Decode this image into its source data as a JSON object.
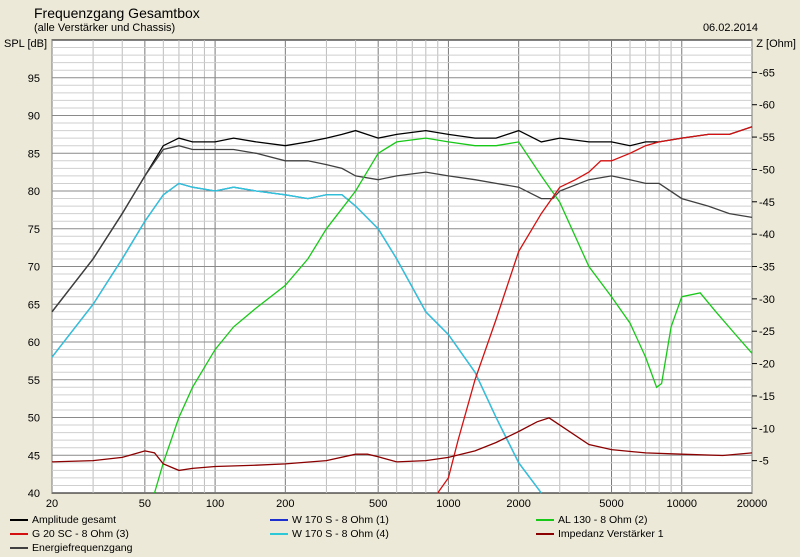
{
  "window": {
    "title": "Frequenzgang Gesamtbox",
    "subtitle": "(alle Verstärker und Chassis)",
    "date": "06.02.2014"
  },
  "colors": {
    "background": "#ece9d8",
    "plot_bg": "#ffffff",
    "grid": "#a0a0a0",
    "black": "#000000",
    "blue": "#1e2fd0",
    "green": "#18c818",
    "red": "#d41010",
    "cyan": "#2dc8d8",
    "darkred": "#8b0000",
    "darkgray": "#404040"
  },
  "chart_data": {
    "type": "line",
    "title": "Frequenzgang Gesamtbox",
    "subtitle": "(alle Verstärker und Chassis)",
    "ylabel": "SPL [dB]",
    "y2label": "Z [Ohm]",
    "xscale": "log",
    "xlim": [
      20,
      20000
    ],
    "ylim": [
      40,
      100
    ],
    "y2lim": [
      0,
      70
    ],
    "xticks": [
      20,
      50,
      100,
      200,
      500,
      1000,
      2000,
      5000,
      10000,
      20000
    ],
    "xtick_labels": [
      "20",
      "50",
      "100",
      "200",
      "500",
      "1000",
      "2000",
      "5000",
      "10000",
      "20000"
    ],
    "yticks": [
      40,
      45,
      50,
      55,
      60,
      65,
      70,
      75,
      80,
      85,
      90,
      95
    ],
    "y2ticks": [
      5,
      10,
      15,
      20,
      25,
      30,
      35,
      40,
      45,
      50,
      55,
      60,
      65
    ],
    "grid": true,
    "legend_position": "bottom",
    "series": [
      {
        "name": "Amplitude gesamt",
        "color": "black",
        "axis": "left",
        "x": [
          20,
          30,
          40,
          50,
          60,
          70,
          80,
          100,
          120,
          150,
          200,
          250,
          300,
          350,
          400,
          500,
          600,
          800,
          1000,
          1300,
          1600,
          2000,
          2500,
          3000,
          4000,
          5000,
          6000,
          7000,
          8000,
          10000,
          13000,
          16000,
          20000
        ],
        "y": [
          64,
          71,
          77,
          82,
          86,
          87,
          86.5,
          86.5,
          87,
          86.5,
          86,
          86.5,
          87,
          87.5,
          88,
          87,
          87.5,
          88,
          87.5,
          87,
          87,
          88,
          86.5,
          87,
          86.5,
          86.5,
          86,
          86.5,
          86.5,
          87,
          87.5,
          87.5,
          88.5
        ]
      },
      {
        "name": "Energiefrequenzgang",
        "color": "darkgray",
        "axis": "left",
        "x": [
          20,
          30,
          40,
          50,
          60,
          70,
          80,
          100,
          120,
          150,
          200,
          250,
          300,
          350,
          400,
          500,
          600,
          800,
          1000,
          1300,
          1600,
          2000,
          2500,
          2800,
          3000,
          4000,
          5000,
          6000,
          7000,
          8000,
          10000,
          13000,
          16000,
          20000
        ],
        "y": [
          64,
          71,
          77,
          82,
          85.5,
          86,
          85.5,
          85.5,
          85.5,
          85,
          84,
          84,
          83.5,
          83,
          82,
          81.5,
          82,
          82.5,
          82,
          81.5,
          81,
          80.5,
          79,
          79,
          80,
          81.5,
          82,
          81.5,
          81,
          81,
          79,
          78,
          77,
          76.5
        ]
      },
      {
        "name": "W 170 S - 8 Ohm (1)",
        "color": "blue",
        "axis": "left",
        "x": [
          20,
          30,
          40,
          50,
          60,
          70,
          80,
          100,
          120,
          150,
          200,
          250,
          300,
          350,
          400,
          500,
          600,
          800,
          1000,
          1300,
          1600,
          2000,
          2500
        ],
        "y": [
          58,
          65,
          71,
          76,
          79.5,
          81,
          80.5,
          80,
          80.5,
          80,
          79.5,
          79,
          79.5,
          79.5,
          78,
          75,
          71,
          64,
          61,
          56,
          50,
          44,
          40
        ]
      },
      {
        "name": "W 170 S - 8 Ohm (4)",
        "color": "cyan",
        "axis": "left",
        "x": [
          20,
          30,
          40,
          50,
          60,
          70,
          80,
          100,
          120,
          150,
          200,
          250,
          300,
          350,
          400,
          500,
          600,
          800,
          1000,
          1300,
          1600,
          2000,
          2500
        ],
        "y": [
          58,
          65,
          71,
          76,
          79.5,
          81,
          80.5,
          80,
          80.5,
          80,
          79.5,
          79,
          79.5,
          79.5,
          78,
          75,
          71,
          64,
          61,
          56,
          50,
          44,
          40
        ]
      },
      {
        "name": "AL 130 - 8 Ohm (2)",
        "color": "green",
        "axis": "left",
        "x": [
          55,
          60,
          70,
          80,
          100,
          120,
          150,
          200,
          250,
          300,
          400,
          500,
          600,
          800,
          1000,
          1300,
          1600,
          2000,
          2500,
          3000,
          4000,
          5000,
          6000,
          7000,
          7800,
          8200,
          9000,
          10000,
          12000,
          14000,
          17000,
          20000
        ],
        "y": [
          40,
          44,
          50,
          54,
          59,
          62,
          64.5,
          67.5,
          71,
          75,
          80,
          85,
          86.5,
          87,
          86.5,
          86,
          86,
          86.5,
          82,
          78.5,
          70,
          66,
          62.5,
          58,
          54,
          54.5,
          62,
          66,
          66.5,
          64,
          61,
          58.5
        ]
      },
      {
        "name": "G 20 SC - 8 Ohm (3)",
        "color": "red",
        "axis": "left",
        "x": [
          900,
          1000,
          1100,
          1300,
          1600,
          2000,
          2500,
          3000,
          3500,
          4000,
          4500,
          5000,
          6000,
          7000,
          8000,
          10000,
          13000,
          16000,
          20000
        ],
        "y": [
          40,
          42,
          47,
          55,
          63,
          72,
          77,
          80.5,
          81.5,
          82.5,
          84,
          84,
          85,
          86,
          86.5,
          87,
          87.5,
          87.5,
          88.5
        ]
      },
      {
        "name": "Impedanz Verstärker 1",
        "color": "darkred",
        "axis": "right",
        "x": [
          20,
          30,
          40,
          50,
          55,
          60,
          70,
          80,
          100,
          150,
          200,
          300,
          400,
          450,
          500,
          600,
          800,
          1000,
          1300,
          1600,
          2000,
          2400,
          2700,
          3000,
          4000,
          5000,
          7000,
          10000,
          15000,
          20000
        ],
        "y": [
          4.8,
          5,
          5.5,
          6.5,
          6.2,
          4.5,
          3.5,
          3.8,
          4.1,
          4.3,
          4.5,
          5,
          6,
          6,
          5.6,
          4.8,
          5,
          5.5,
          6.5,
          7.8,
          9.5,
          11,
          11.6,
          10.5,
          7.5,
          6.7,
          6.2,
          6,
          5.8,
          6.2
        ]
      }
    ]
  },
  "legend": [
    {
      "name": "Amplitude gesamt",
      "color_key": "black"
    },
    {
      "name": "G 20 SC - 8 Ohm (3)",
      "color_key": "red"
    },
    {
      "name": "Energiefrequenzgang",
      "color_key": "darkgray"
    },
    {
      "name": "W 170 S - 8 Ohm (1)",
      "color_key": "blue"
    },
    {
      "name": "W 170 S - 8 Ohm (4)",
      "color_key": "cyan"
    },
    {
      "name": "AL 130 - 8 Ohm (2)",
      "color_key": "green"
    },
    {
      "name": "Impedanz Verstärker 1",
      "color_key": "darkred"
    }
  ]
}
